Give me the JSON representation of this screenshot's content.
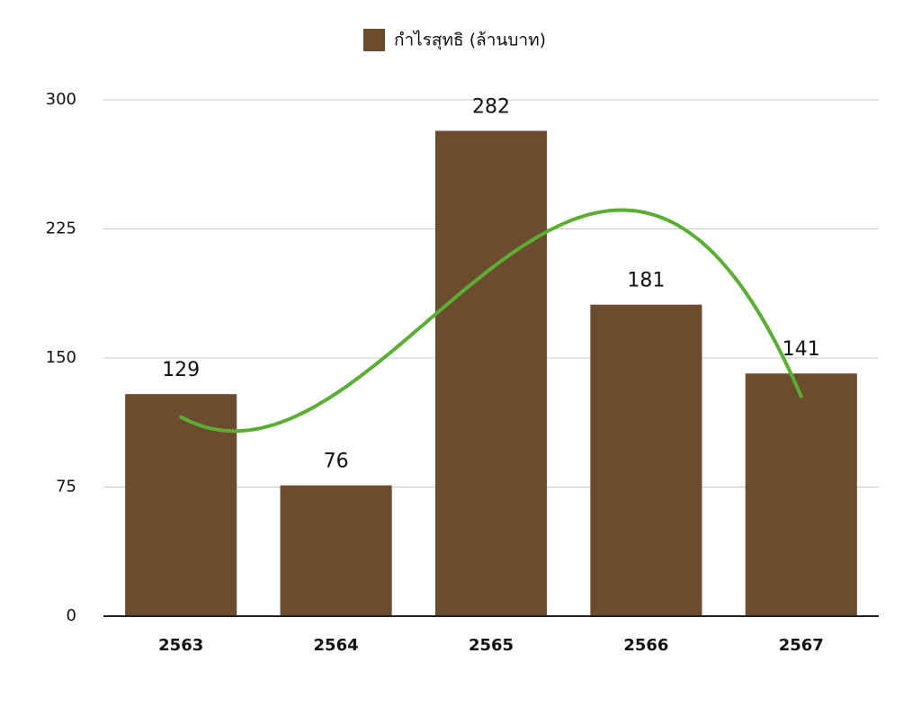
{
  "chart_data": {
    "type": "bar",
    "categories": [
      "2563",
      "2564",
      "2565",
      "2566",
      "2567"
    ],
    "series": [
      {
        "name": "กำไรสุทธิ (ล้านบาท)",
        "color": "#6b4c2e",
        "values": [
          129,
          76,
          282,
          181,
          141
        ]
      }
    ],
    "ylim": [
      0,
      300
    ],
    "yticks": [
      0,
      75,
      150,
      225,
      300
    ],
    "grid": true,
    "legend": "top",
    "trendline": {
      "type": "polynomial",
      "order": 3,
      "color": "#5aae32"
    }
  }
}
